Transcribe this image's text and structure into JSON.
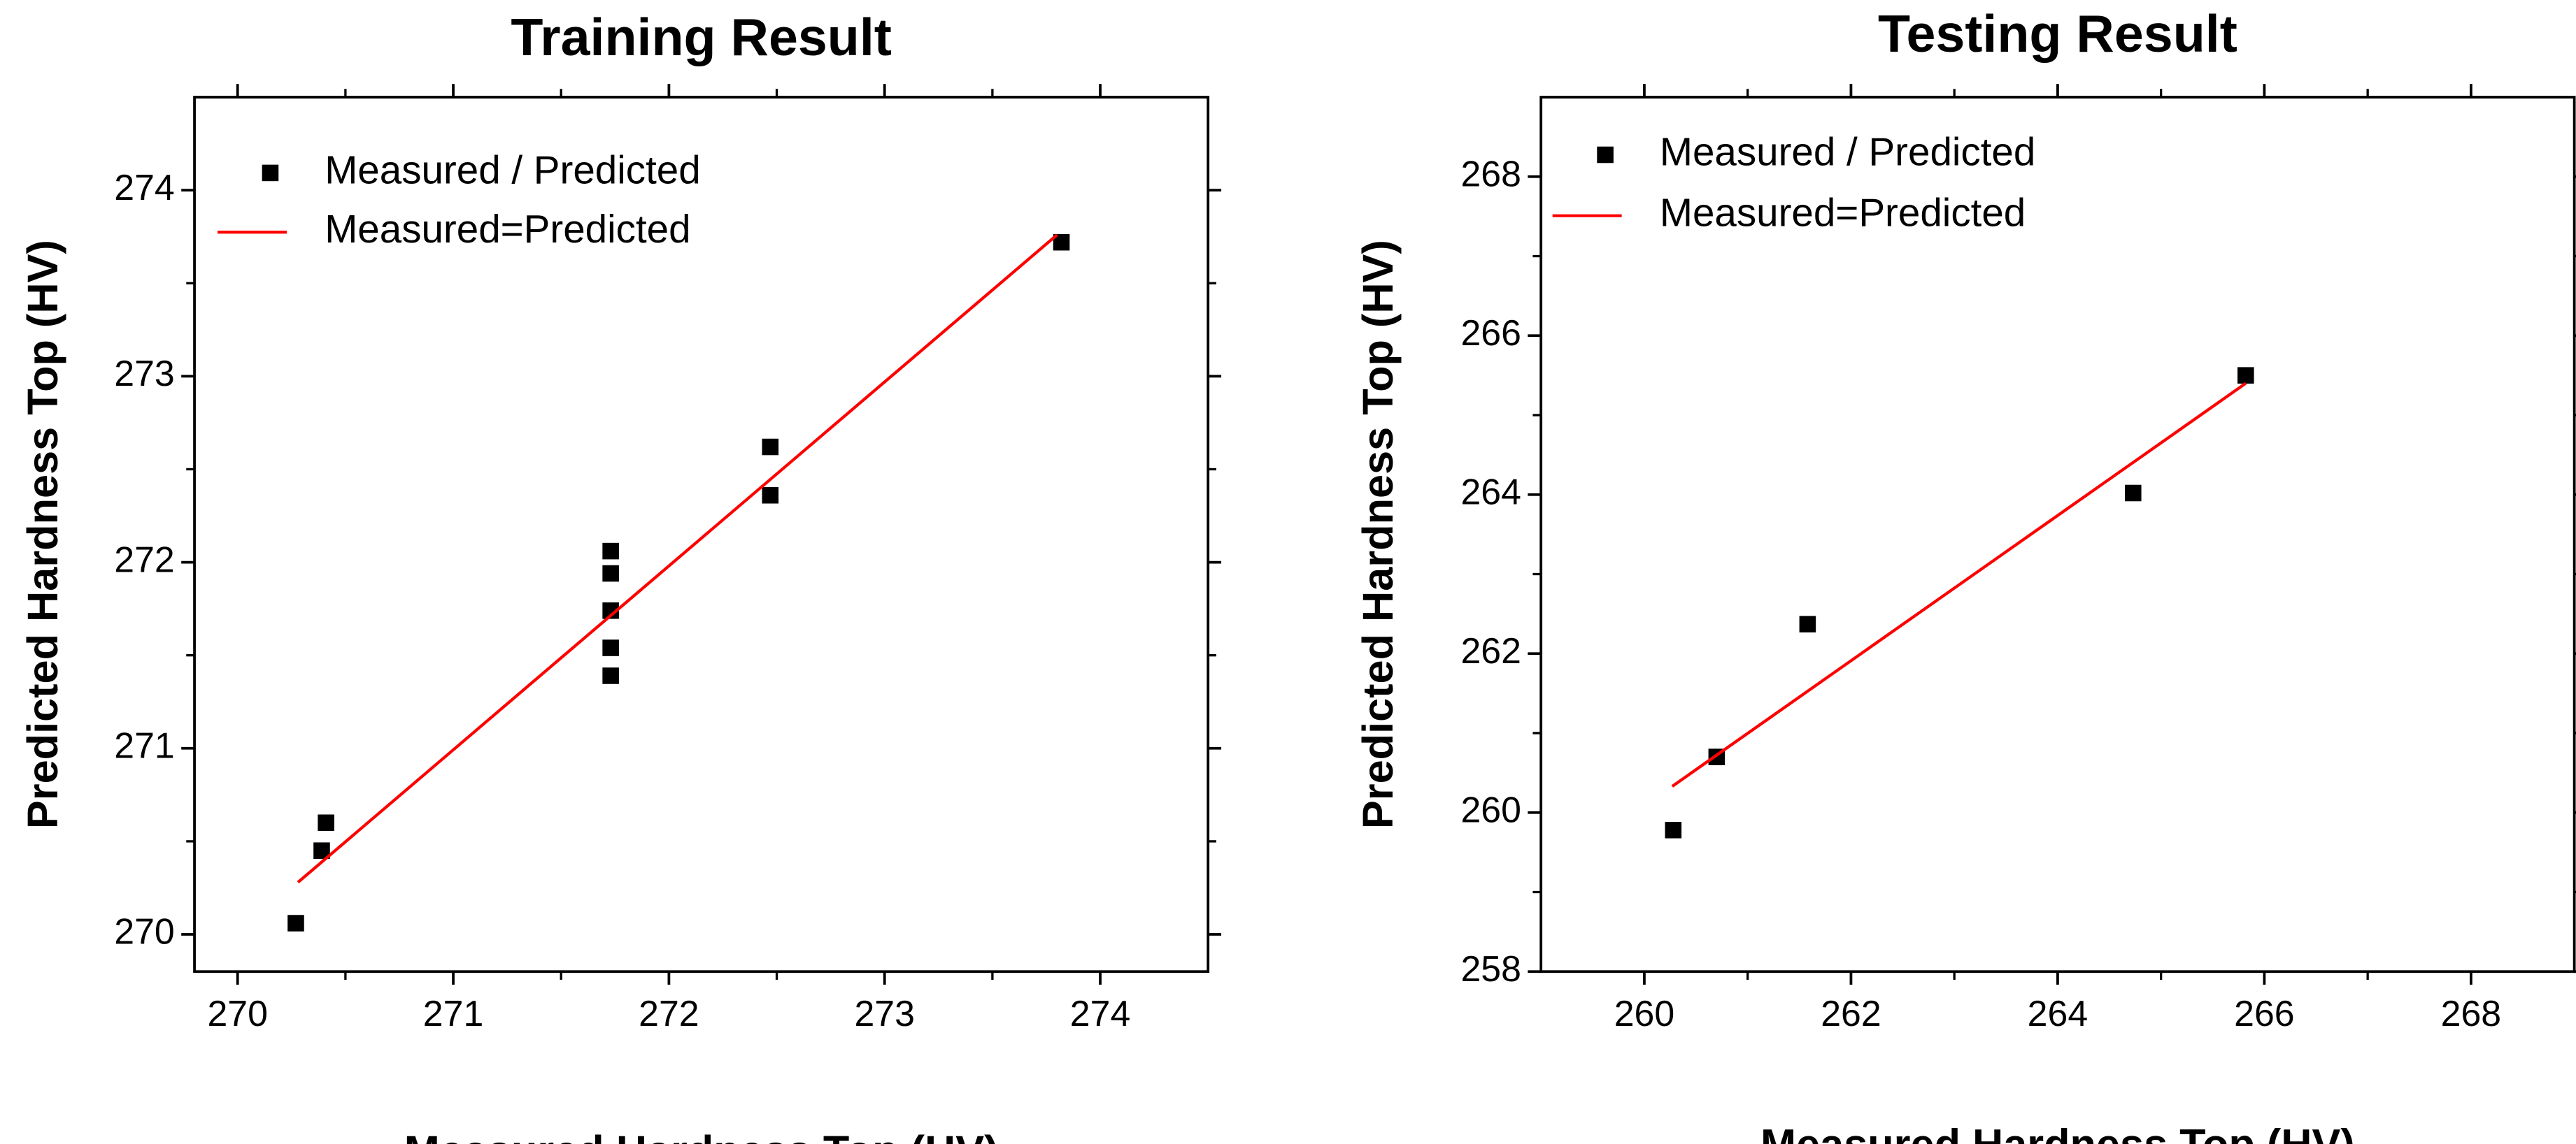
{
  "chart_data": [
    {
      "type": "scatter",
      "title": "Training Result",
      "xlabel": "Measured Hardness Top (HV)",
      "ylabel": "Predicted Hardness Top (HV)",
      "xlim": [
        269.8,
        274.5
      ],
      "ylim": [
        269.8,
        274.5
      ],
      "xticks": [
        270,
        271,
        272,
        273,
        274
      ],
      "yticks": [
        270,
        271,
        272,
        273,
        274
      ],
      "legend_position": "top-left",
      "series": [
        {
          "name": "Measured / Predicted",
          "kind": "scatter",
          "color": "#000000",
          "points": [
            {
              "x": 270.27,
              "y": 270.06
            },
            {
              "x": 270.39,
              "y": 270.45
            },
            {
              "x": 270.41,
              "y": 270.6
            },
            {
              "x": 271.73,
              "y": 271.39
            },
            {
              "x": 271.73,
              "y": 271.54
            },
            {
              "x": 271.73,
              "y": 271.74
            },
            {
              "x": 271.73,
              "y": 271.94
            },
            {
              "x": 271.73,
              "y": 272.06
            },
            {
              "x": 272.47,
              "y": 272.36
            },
            {
              "x": 272.47,
              "y": 272.62
            },
            {
              "x": 273.82,
              "y": 273.72
            }
          ]
        },
        {
          "name": "Measured=Predicted",
          "kind": "line",
          "color": "#ff0000",
          "points": [
            {
              "x": 270.28,
              "y": 270.28
            },
            {
              "x": 273.8,
              "y": 273.76
            }
          ]
        }
      ]
    },
    {
      "type": "scatter",
      "title": "Testing Result",
      "xlabel": "Measured Hardness Top (HV)",
      "ylabel": "Predicted Hardness Top (HV)",
      "xlim": [
        259,
        269
      ],
      "ylim": [
        258,
        269
      ],
      "xticks": [
        260,
        262,
        264,
        266,
        268
      ],
      "yticks": [
        258,
        260,
        262,
        264,
        266,
        268
      ],
      "legend_position": "top-left",
      "series": [
        {
          "name": "Measured / Predicted",
          "kind": "scatter",
          "color": "#000000",
          "points": [
            {
              "x": 260.28,
              "y": 259.78
            },
            {
              "x": 260.7,
              "y": 260.7
            },
            {
              "x": 261.58,
              "y": 262.37
            },
            {
              "x": 264.73,
              "y": 264.02
            },
            {
              "x": 265.82,
              "y": 265.5
            }
          ]
        },
        {
          "name": "Measured=Predicted",
          "kind": "line",
          "color": "#ff0000",
          "points": [
            {
              "x": 260.27,
              "y": 260.33
            },
            {
              "x": 265.82,
              "y": 265.4
            }
          ]
        }
      ]
    }
  ]
}
